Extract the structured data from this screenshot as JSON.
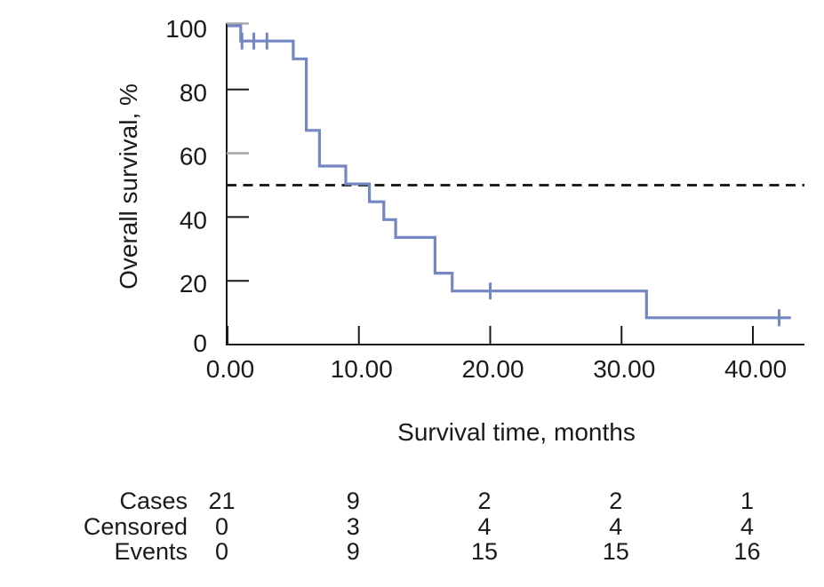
{
  "chart_data": {
    "type": "line",
    "subtype": "kaplan-meier-step",
    "title": "",
    "xlabel": "Survival time, months",
    "ylabel": "Overall survival, %",
    "xlim": [
      0,
      44
    ],
    "ylim": [
      0,
      100
    ],
    "grid": false,
    "legend": "none",
    "x_ticks": [
      0,
      10,
      20,
      30,
      40
    ],
    "x_ticklabels": [
      "0.00",
      "10.00",
      "20.00",
      "30.00",
      "40.00"
    ],
    "y_ticks": [
      100,
      80,
      60,
      40,
      20,
      0
    ],
    "y_ticklabels": [
      "100",
      "80",
      "60",
      "40",
      "20",
      "0"
    ],
    "series": [
      {
        "name": "Overall survival",
        "color": "#7487c3",
        "steps": [
          [
            0,
            100
          ],
          [
            1,
            95.2
          ],
          [
            5,
            89.6
          ],
          [
            6,
            67.2
          ],
          [
            7,
            56.0
          ],
          [
            9,
            50.4
          ],
          [
            10.8,
            44.8
          ],
          [
            11.9,
            39.2
          ],
          [
            12.8,
            33.6
          ],
          [
            15.8,
            22.4
          ],
          [
            17.1,
            16.8
          ],
          [
            31.9,
            8.4
          ]
        ],
        "end_time": 42.9,
        "censor_marks": [
          [
            1.1,
            95.2
          ],
          [
            2.0,
            95.2
          ],
          [
            3.0,
            95.2
          ],
          [
            20.0,
            16.8
          ],
          [
            42.0,
            8.4
          ]
        ]
      }
    ],
    "reference_line": {
      "y": 50,
      "style": "dashed"
    },
    "risk_table": {
      "time_points": [
        0,
        10,
        20,
        30,
        40
      ],
      "rows": [
        {
          "label": "Cases",
          "values": [
            "21",
            "9",
            "2",
            "2",
            "1"
          ]
        },
        {
          "label": "Censored",
          "values": [
            "0",
            "3",
            "4",
            "4",
            "4"
          ]
        },
        {
          "label": "Events",
          "values": [
            "0",
            "9",
            "15",
            "15",
            "16"
          ]
        }
      ]
    }
  },
  "colors": {
    "curve": "#7487c3",
    "axis": "#1a1a1a",
    "grey_tick": "#a8a8a8",
    "dashed": "#111111",
    "background": "#ffffff"
  }
}
